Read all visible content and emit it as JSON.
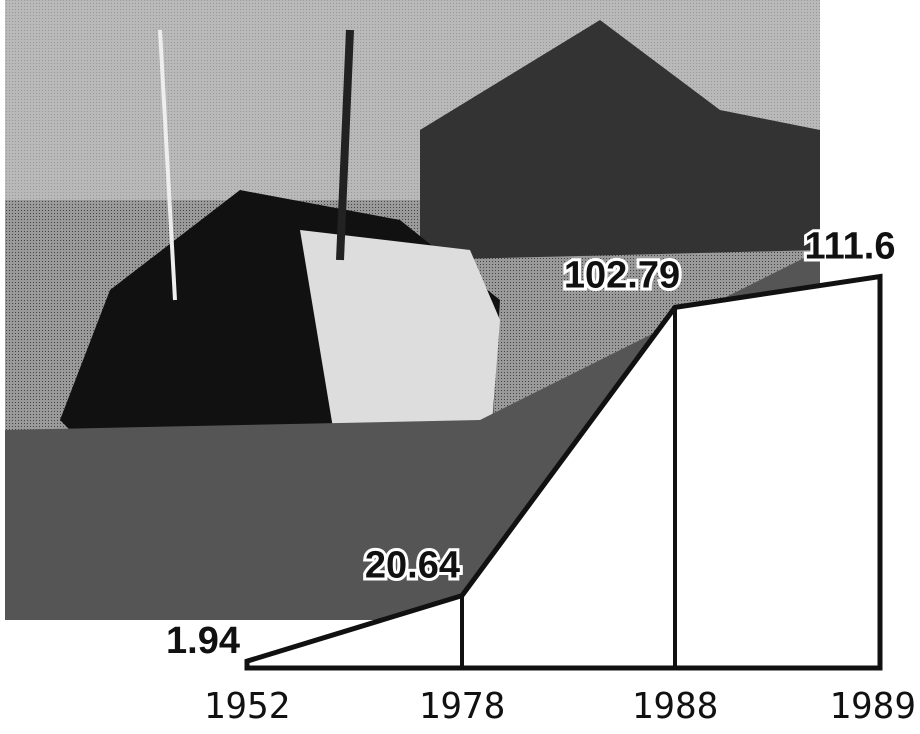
{
  "chart_data": {
    "type": "area",
    "categories": [
      "1952",
      "1978",
      "1988",
      "1989"
    ],
    "values": [
      1.94,
      20.64,
      102.79,
      111.6
    ],
    "ylim": [
      0,
      120
    ],
    "color": "#ffffff"
  }
}
